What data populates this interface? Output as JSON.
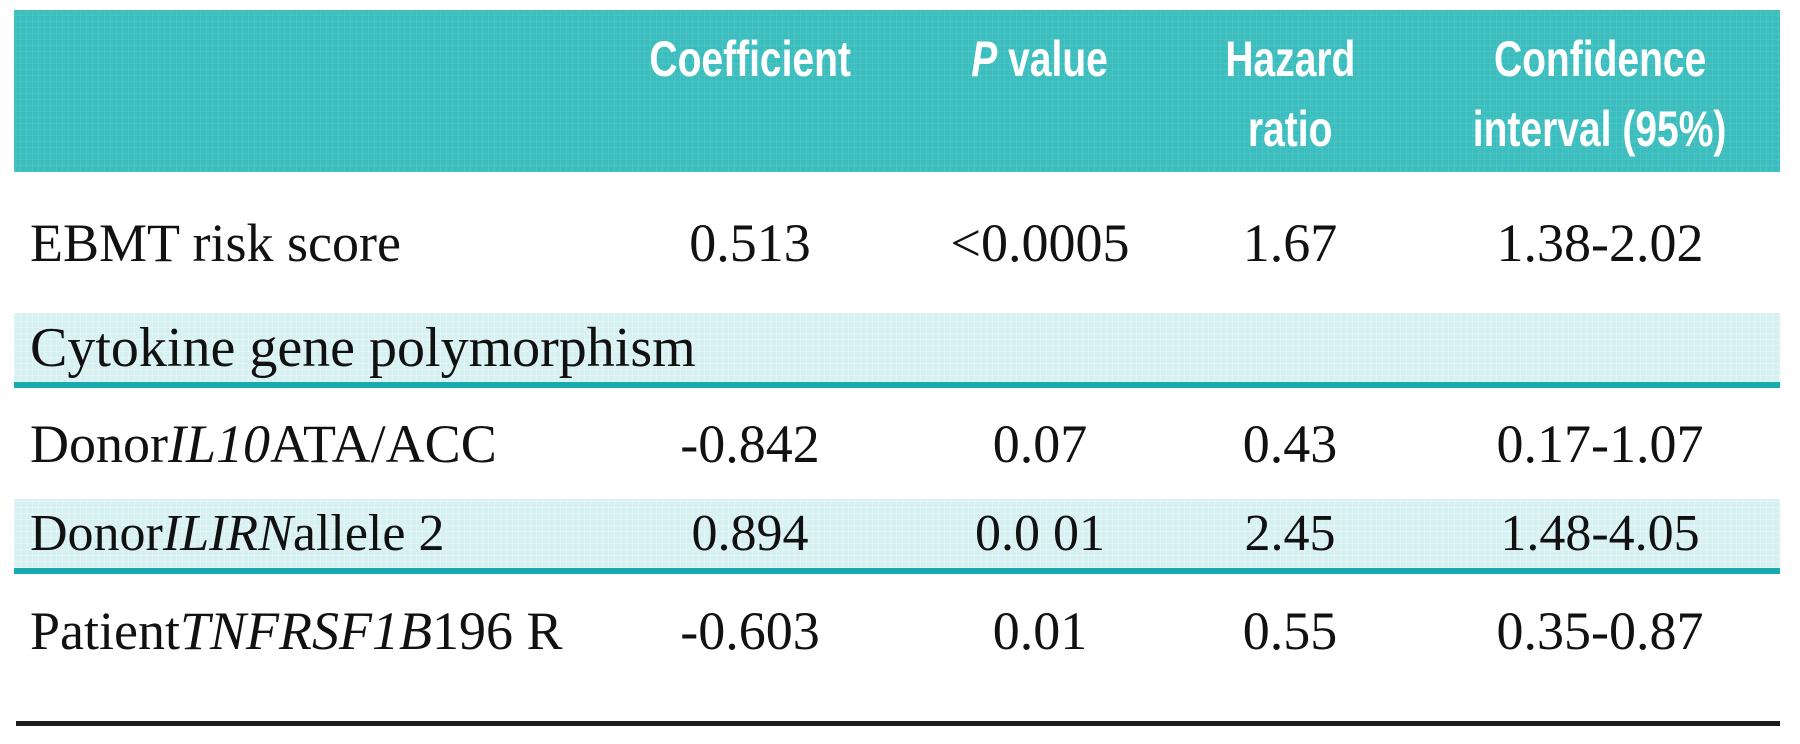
{
  "colors": {
    "header_background": "#3dbebe",
    "header_text": "#ffffff",
    "highlight_row_background": "#d7f1f3",
    "teal_divider": "#17abb0",
    "body_text": "#111111",
    "bottom_rule": "#1c1c1c"
  },
  "table": {
    "header": {
      "col_label": "",
      "col_coefficient": "Coefficient",
      "col_p_italic": "P",
      "col_p_rest": " value",
      "col_hazard_line1": "Hazard",
      "col_hazard_line2": "ratio",
      "col_ci_line1": "Confidence",
      "col_ci_line2": "interval (95%)"
    },
    "rows": [
      {
        "label_prefix": "EBMT risk score",
        "label_gene": "",
        "label_suffix": "",
        "coefficient": "0.513",
        "p_value": "<0.0005",
        "hazard_ratio": "1.67",
        "confidence_interval": "1.38-2.02"
      },
      {
        "section_label": "Cytokine gene polymorphism"
      },
      {
        "label_prefix": "Donor ",
        "label_gene": "IL10",
        "label_suffix": " ATA/ACC",
        "coefficient": "-0.842",
        "p_value": "0.07",
        "hazard_ratio": "0.43",
        "confidence_interval": "0.17-1.07"
      },
      {
        "label_prefix": "Donor ",
        "label_gene": "ILIRN",
        "label_suffix": " allele 2",
        "coefficient": "0.894",
        "p_value": "0.0 01",
        "hazard_ratio": "2.45",
        "confidence_interval": "1.48-4.05"
      },
      {
        "label_prefix": "Patient ",
        "label_gene": "TNFRSF1B",
        "label_suffix": " 196 R",
        "coefficient": "-0.603",
        "p_value": "0.01",
        "hazard_ratio": "0.55",
        "confidence_interval": "0.35-0.87"
      }
    ]
  }
}
